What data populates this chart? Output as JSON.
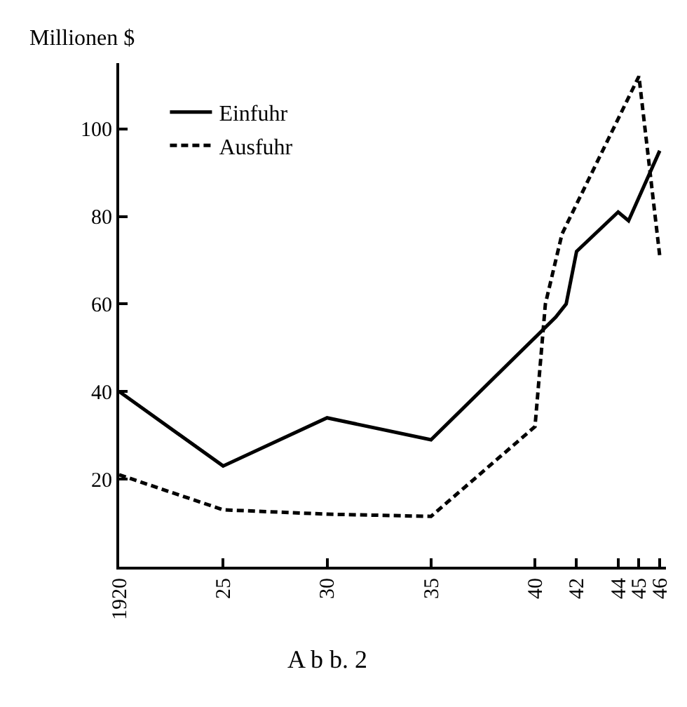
{
  "chart_data": {
    "type": "line",
    "ylabel": "Millionen $",
    "annotations": [
      "A b b. 2"
    ],
    "xlim": [
      1920,
      1946.3
    ],
    "ylim": [
      0,
      115
    ],
    "xticks": [
      {
        "value": 1920,
        "label": "1920"
      },
      {
        "value": 1925,
        "label": "25"
      },
      {
        "value": 1930,
        "label": "30"
      },
      {
        "value": 1935,
        "label": "35"
      },
      {
        "value": 1940,
        "label": "40"
      },
      {
        "value": 1942,
        "label": "42"
      },
      {
        "value": 1944,
        "label": "44"
      },
      {
        "value": 1945,
        "label": "45"
      },
      {
        "value": 1946,
        "label": "46"
      }
    ],
    "yticks": [
      20,
      40,
      60,
      80,
      100
    ],
    "legend": "top left",
    "marker": "none",
    "series": [
      {
        "name": "Einfuhr",
        "color": "#000000",
        "line_style": "solid",
        "x": [
          1920,
          1925,
          1930,
          1935,
          1941,
          1941.5,
          1942,
          1944,
          1944.5,
          1946
        ],
        "values": [
          40,
          23,
          34,
          29,
          57,
          60,
          72,
          81,
          79,
          95
        ]
      },
      {
        "name": "Ausfuhr",
        "color": "#000000",
        "line_style": "dashed",
        "x": [
          1920,
          1925,
          1930,
          1935,
          1940,
          1940.5,
          1941.3,
          1945,
          1946
        ],
        "values": [
          21,
          13,
          12,
          11.5,
          32,
          60,
          76,
          112,
          71
        ]
      }
    ]
  }
}
